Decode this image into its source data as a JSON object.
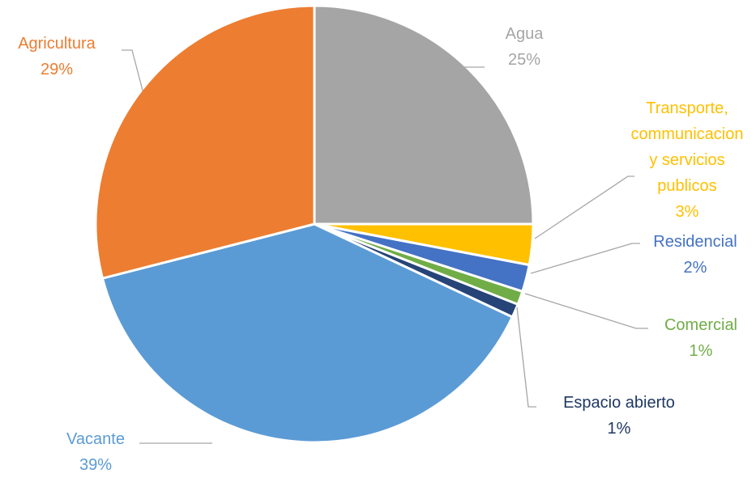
{
  "chart_data": {
    "type": "pie",
    "categories": [
      "Agua",
      "Transporte, communicacion y servicios publicos",
      "Residencial",
      "Comercial",
      "Espacio abierto",
      "Vacante",
      "Agricultura"
    ],
    "values": [
      25,
      3,
      2,
      1,
      1,
      39,
      29
    ],
    "value_labels": [
      "25%",
      "3%",
      "2%",
      "1%",
      "1%",
      "39%",
      "29%"
    ],
    "colors": [
      "#a5a5a5",
      "#ffc000",
      "#4472c4",
      "#70ad47",
      "#264478",
      "#5b9bd5",
      "#ed7d31"
    ]
  }
}
